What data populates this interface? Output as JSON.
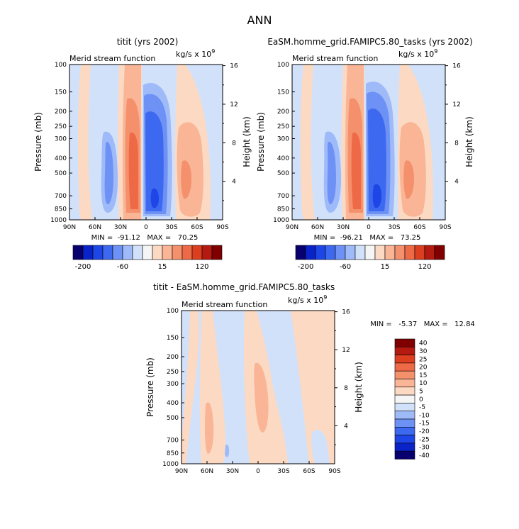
{
  "title": "ANN",
  "chart_data": [
    {
      "type": "heatmap",
      "title": "titit (yrs 2002)",
      "subtitle": "Merid stream function",
      "units": "kg/s x 10",
      "units_exp": "9",
      "ylabel": "Pressure (mb)",
      "ylabel_right": "Height (km)",
      "xticks": [
        "90N",
        "60N",
        "30N",
        "0",
        "30S",
        "60S",
        "90S"
      ],
      "yticks": [
        "100",
        "150",
        "200",
        "250",
        "300",
        "400",
        "500",
        "700",
        "850",
        "1000"
      ],
      "yticks_right": [
        "16",
        "12",
        "8",
        "4"
      ],
      "stats_text": "MIN =  -91.12   MAX =   70.25",
      "min": -91.12,
      "max": 70.25
    },
    {
      "type": "heatmap",
      "title": "EaSM.homme_grid.FAMIPC5.80_tasks (yrs 2002)",
      "subtitle": "Merid stream function",
      "units": "kg/s x 10",
      "units_exp": "9",
      "ylabel": "Pressure (mb)",
      "ylabel_right": "Height (km)",
      "xticks": [
        "90N",
        "60N",
        "30N",
        "0",
        "30S",
        "60S",
        "90S"
      ],
      "yticks": [
        "100",
        "150",
        "200",
        "250",
        "300",
        "400",
        "500",
        "700",
        "850",
        "1000"
      ],
      "yticks_right": [
        "16",
        "12",
        "8",
        "4"
      ],
      "stats_text": "MIN =  -96.21   MAX =   73.25",
      "min": -96.21,
      "max": 73.25
    },
    {
      "type": "heatmap",
      "title": "titit - EaSM.homme_grid.FAMIPC5.80_tasks",
      "subtitle": "Merid stream function",
      "units": "kg/s x 10",
      "units_exp": "9",
      "ylabel": "Pressure (mb)",
      "ylabel_right": "Height (km)",
      "xticks": [
        "90N",
        "60N",
        "30N",
        "0",
        "30S",
        "60S",
        "90S"
      ],
      "yticks": [
        "100",
        "150",
        "200",
        "250",
        "300",
        "400",
        "500",
        "700",
        "850",
        "1000"
      ],
      "yticks_right": [
        "16",
        "12",
        "8",
        "4"
      ],
      "stats_text": "MIN =   -5.37   MAX =   12.84",
      "min": -5.37,
      "max": 12.84
    }
  ],
  "colorbar_top": {
    "labels": [
      "-200",
      "-60",
      "15",
      "120"
    ],
    "colors": [
      "#08006e",
      "#0a23c8",
      "#1e46e6",
      "#3c69f0",
      "#6e91f5",
      "#9fbaf8",
      "#d2e1fa",
      "#f5f5f5",
      "#fcd9c3",
      "#f9b595",
      "#f4916c",
      "#ee6a46",
      "#dc3e20",
      "#b41a10",
      "#800000"
    ]
  },
  "colorbar_diff": {
    "labels": [
      "40",
      "30",
      "25",
      "20",
      "15",
      "10",
      "5",
      "0",
      "-5",
      "-10",
      "-15",
      "-20",
      "-25",
      "-30",
      "-40"
    ],
    "colors": [
      "#800000",
      "#b41a10",
      "#dc3e20",
      "#ee6a46",
      "#f4916c",
      "#f9b595",
      "#fcd9c3",
      "#f5f5f5",
      "#d2e1fa",
      "#9fbaf8",
      "#6e91f5",
      "#3c69f0",
      "#1e46e6",
      "#0a23c8",
      "#08006e"
    ]
  },
  "fill_colors": {
    "neg1": "#d2e1fa",
    "neg2": "#9fbaf8",
    "neg3": "#6e91f5",
    "neg4": "#3c69f0",
    "neg5": "#1e46e6",
    "pos1": "#fcd9c3",
    "pos2": "#f9b595",
    "pos3": "#f4916c",
    "pos4": "#ee6a46"
  }
}
